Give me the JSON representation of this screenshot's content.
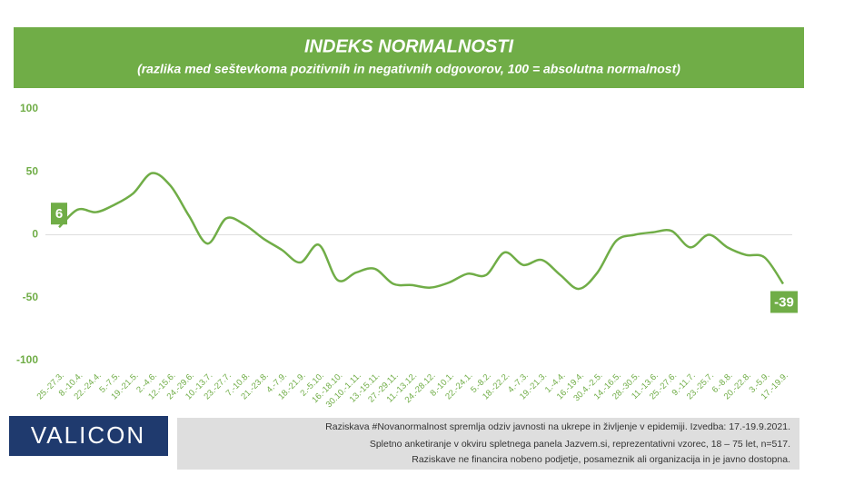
{
  "chart_data": {
    "type": "line",
    "title": "INDEKS NORMALNOSTI",
    "subtitle": "(razlika med seštevkoma pozitivnih in negativnih odgovorov, 100 = absolutna normalnost)",
    "categories": [
      "25.-27.3.",
      "8.-10.4.",
      "22.-24.4.",
      "5.-7.5.",
      "19.-21.5.",
      "2.-4.6.",
      "12.-15.6.",
      "24.-29.6.",
      "10.-13.7.",
      "23.-27.7.",
      "7.-10.8.",
      "21.-23.8.",
      "4.-7.9.",
      "18.-21.9.",
      "2.-5.10.",
      "16.-18.10.",
      "30.10.-1.11.",
      "13.-15.11.",
      "27.-29.11.",
      "11.-13.12.",
      "24.-28.12.",
      "8.-10.1.",
      "22.-24.1.",
      "5.-8.2.",
      "18.-22.2.",
      "4.-7.3.",
      "19.-21.3.",
      "1.-4.4.",
      "16.-19.4.",
      "30.4.-2.5.",
      "14.-16.5.",
      "28.-30.5.",
      "11.-13.6.",
      "25.-27.6.",
      "9.-11.7.",
      "23.-25.7.",
      "6.-8.8.",
      "20.-22.8.",
      "3.-5.9.",
      "17.-19.9."
    ],
    "values": [
      6,
      20,
      18,
      24,
      33,
      49,
      39,
      15,
      -7,
      13,
      8,
      -3,
      -12,
      -22,
      -8,
      -36,
      -30,
      -27,
      -39,
      -40,
      -42,
      -38,
      -31,
      -32,
      -14,
      -24,
      -20,
      -32,
      -43,
      -30,
      -5,
      0,
      2,
      3,
      -10,
      0,
      -10,
      -16,
      -18,
      -39
    ],
    "color": "#70ad47",
    "ylim": [
      -100,
      100
    ],
    "yticks": [
      -100,
      -50,
      0,
      50,
      100
    ]
  },
  "footer": {
    "logo": "VALICON",
    "lines": [
      "Raziskava #Novanormalnost spremlja odziv javnosti na ukrepe in življenje v epidemiji. Izvedba: 17.-19.9.2021.",
      "Spletno anketiranje v okviru spletnega panela Jazvem.si, reprezentativni vzorec, 18 – 75 let, n=517.",
      "Raziskave ne financira nobeno podjetje, posameznik ali organizacija in je javno dostopna."
    ]
  }
}
